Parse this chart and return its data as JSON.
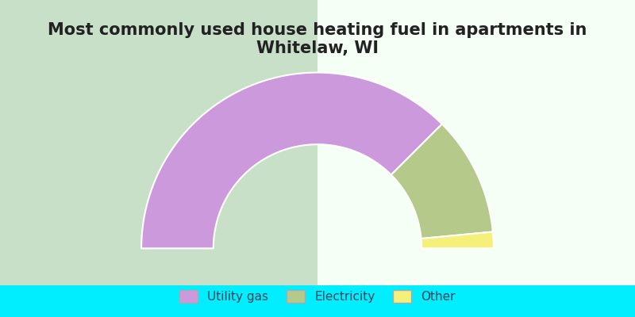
{
  "title": "Most commonly used house heating fuel in apartments in Whitelaw, WI",
  "segments": [
    {
      "label": "Utility gas",
      "value": 75,
      "color": "#cc99dd"
    },
    {
      "label": "Electricity",
      "value": 22,
      "color": "#b5c98a"
    },
    {
      "label": "Other",
      "value": 3,
      "color": "#f5f07a"
    }
  ],
  "background_top": "#e8f5e8",
  "background_bottom": "#00eeff",
  "legend_text_color": "#334455",
  "title_fontsize": 15,
  "legend_fontsize": 11
}
